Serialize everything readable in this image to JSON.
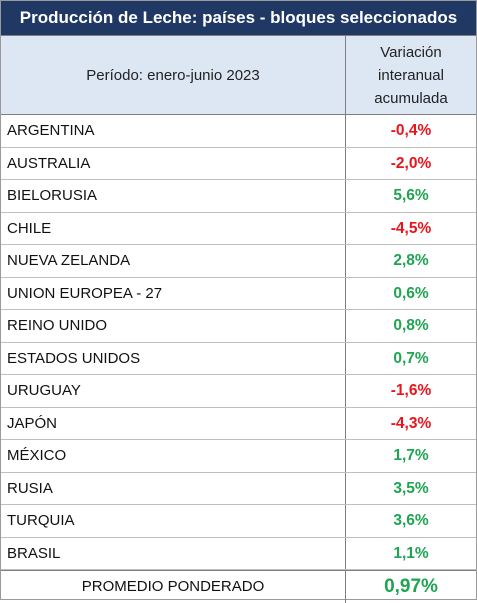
{
  "title": "Producción de Leche: países - bloques seleccionados",
  "header": {
    "period": "Período: enero-junio 2023",
    "variation": [
      "Variación",
      "interanual",
      "acumulada"
    ]
  },
  "rows": [
    {
      "country": "ARGENTINA",
      "value": "-0,4%"
    },
    {
      "country": "AUSTRALIA",
      "value": "-2,0%"
    },
    {
      "country": "BIELORUSIA",
      "value": "5,6%"
    },
    {
      "country": "CHILE",
      "value": "-4,5%"
    },
    {
      "country": "NUEVA ZELANDA",
      "value": "2,8%"
    },
    {
      "country": "UNION EUROPEA - 27",
      "value": "0,6%"
    },
    {
      "country": "REINO UNIDO",
      "value": "0,8%"
    },
    {
      "country": "ESTADOS UNIDOS",
      "value": "0,7%"
    },
    {
      "country": "URUGUAY",
      "value": "-1,6%"
    },
    {
      "country": "JAPÓN",
      "value": "-4,3%"
    },
    {
      "country": "MÉXICO",
      "value": "1,7%"
    },
    {
      "country": "RUSIA",
      "value": "3,5%"
    },
    {
      "country": "TURQUIA",
      "value": "3,6%"
    },
    {
      "country": "BRASIL",
      "value": "1,1%"
    }
  ],
  "footer": {
    "label": "PROMEDIO PONDERADO",
    "value": "0,97%"
  },
  "colors": {
    "header_bg": "#1f3864",
    "subheader_bg": "#dde7f4",
    "negative": "#e8141b",
    "positive": "#1ea551"
  }
}
